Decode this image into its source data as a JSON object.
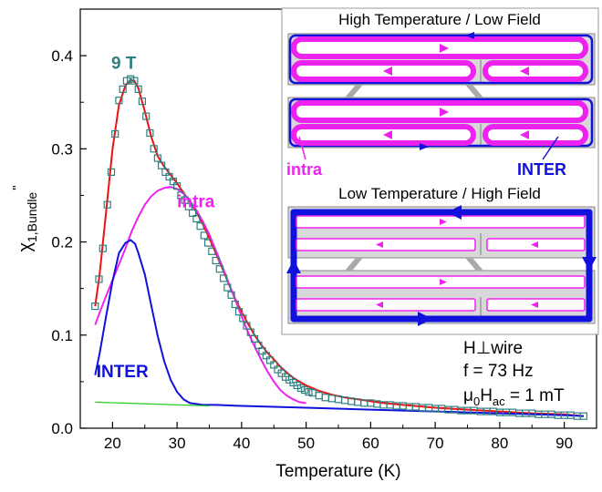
{
  "chart_data": {
    "type": "scatter",
    "xlabel": "Temperature (K)",
    "ylabel": {
      "base": "χ",
      "sub": "1,Bundle",
      "sup": "\""
    },
    "xlim": [
      15,
      95
    ],
    "ylim": [
      0,
      0.45
    ],
    "xticks": [
      20,
      30,
      40,
      50,
      60,
      70,
      80,
      90
    ],
    "yticks": [
      0.0,
      0.1,
      0.2,
      0.3,
      0.4
    ],
    "xtick_labels": [
      "20",
      "30",
      "40",
      "50",
      "60",
      "70",
      "80",
      "90"
    ],
    "ytick_labels": [
      "0.0",
      "0.1",
      "0.2",
      "0.3",
      "0.4"
    ],
    "grid": false,
    "colors": {
      "data": "#2f8080",
      "fit": "#ee1111",
      "intra": "#ee22ee",
      "inter": "#1111dd",
      "background": "#22cc22"
    },
    "series": [
      {
        "name": "9 T",
        "kind": "markers",
        "x": [
          17.3,
          17.9,
          18.5,
          19.2,
          19.8,
          20.4,
          21,
          21.6,
          22.2,
          22.8,
          23.4,
          24,
          24.6,
          25.2,
          25.8,
          26.4,
          27,
          27.6,
          28.2,
          28.8,
          29.4,
          30,
          30.6,
          31.2,
          31.8,
          32.4,
          33,
          33.6,
          34.2,
          34.8,
          35.4,
          36,
          36.6,
          37.2,
          37.8,
          38.4,
          39,
          39.6,
          40.2,
          40.8,
          41.4,
          42,
          42.6,
          43.2,
          43.8,
          44.4,
          45,
          45.6,
          46.2,
          46.8,
          47.4,
          48,
          48.6,
          49.2,
          49.8,
          50.4,
          51,
          52,
          53,
          54,
          55,
          56,
          57,
          58,
          59,
          60,
          61,
          62,
          63,
          64,
          65,
          66,
          67,
          68,
          69,
          70,
          71,
          72,
          73,
          74,
          75,
          76,
          77,
          78,
          79,
          80,
          81,
          82,
          83,
          84,
          85,
          86,
          87,
          88,
          89,
          90,
          91,
          92,
          93
        ],
        "y": [
          0.131,
          0.16,
          0.193,
          0.24,
          0.275,
          0.316,
          0.352,
          0.364,
          0.373,
          0.375,
          0.373,
          0.364,
          0.351,
          0.335,
          0.317,
          0.3,
          0.29,
          0.282,
          0.275,
          0.27,
          0.265,
          0.26,
          0.25,
          0.245,
          0.238,
          0.231,
          0.225,
          0.217,
          0.207,
          0.199,
          0.19,
          0.18,
          0.171,
          0.161,
          0.151,
          0.143,
          0.133,
          0.125,
          0.118,
          0.11,
          0.103,
          0.096,
          0.089,
          0.083,
          0.078,
          0.073,
          0.068,
          0.063,
          0.059,
          0.055,
          0.052,
          0.049,
          0.046,
          0.043,
          0.041,
          0.039,
          0.038,
          0.035,
          0.033,
          0.032,
          0.031,
          0.03,
          0.029,
          0.028,
          0.027,
          0.027,
          0.026,
          0.025,
          0.025,
          0.024,
          0.024,
          0.023,
          0.023,
          0.022,
          0.022,
          0.021,
          0.021,
          0.02,
          0.02,
          0.019,
          0.019,
          0.019,
          0.018,
          0.018,
          0.018,
          0.017,
          0.017,
          0.017,
          0.016,
          0.016,
          0.016,
          0.015,
          0.015,
          0.015,
          0.014,
          0.014,
          0.014,
          0.013,
          0.013
        ]
      },
      {
        "name": "",
        "kind": "line",
        "color_key": "fit",
        "x": [
          17.3,
          18,
          19,
          20,
          21,
          22,
          22.8,
          23.4,
          24,
          25,
          26,
          27,
          28,
          29,
          30,
          31,
          32,
          33,
          34,
          35,
          36,
          37,
          38,
          39,
          40,
          41,
          42,
          43,
          44,
          45,
          46,
          47,
          48,
          49,
          50,
          52,
          54,
          56,
          58,
          60,
          62,
          65,
          70,
          75,
          80,
          85,
          90,
          93
        ],
        "y": [
          0.131,
          0.165,
          0.232,
          0.3,
          0.347,
          0.368,
          0.374,
          0.373,
          0.365,
          0.34,
          0.313,
          0.292,
          0.281,
          0.272,
          0.263,
          0.253,
          0.243,
          0.232,
          0.219,
          0.204,
          0.188,
          0.172,
          0.155,
          0.139,
          0.125,
          0.112,
          0.1,
          0.09,
          0.081,
          0.074,
          0.066,
          0.06,
          0.054,
          0.05,
          0.046,
          0.04,
          0.036,
          0.033,
          0.031,
          0.029,
          0.027,
          0.025,
          0.022,
          0.02,
          0.018,
          0.016,
          0.015,
          0.013
        ]
      },
      {
        "name": "intra",
        "kind": "line",
        "color_key": "intra",
        "x": [
          17.3,
          18,
          19,
          20,
          21,
          22,
          23,
          24,
          25,
          26,
          27,
          28,
          29,
          30,
          31,
          32,
          33,
          34,
          35,
          36,
          37,
          38,
          39,
          40,
          41,
          42,
          43,
          44,
          45,
          46,
          47,
          48,
          49,
          50
        ],
        "y": [
          0.111,
          0.124,
          0.142,
          0.159,
          0.176,
          0.193,
          0.212,
          0.227,
          0.24,
          0.249,
          0.255,
          0.258,
          0.259,
          0.257,
          0.252,
          0.244,
          0.234,
          0.222,
          0.208,
          0.191,
          0.174,
          0.156,
          0.138,
          0.12,
          0.103,
          0.088,
          0.074,
          0.061,
          0.05,
          0.041,
          0.035,
          0.031,
          0.028,
          0.027
        ]
      },
      {
        "name": "INTER",
        "kind": "line",
        "color_key": "inter",
        "x": [
          17.3,
          18,
          19,
          20,
          21,
          22,
          22.8,
          23.5,
          24,
          25,
          26,
          27,
          28,
          29,
          30,
          31,
          32,
          33,
          34,
          36,
          40,
          50,
          60,
          70,
          80,
          90,
          93
        ],
        "y": [
          0.057,
          0.08,
          0.12,
          0.158,
          0.188,
          0.199,
          0.202,
          0.198,
          0.188,
          0.165,
          0.132,
          0.099,
          0.072,
          0.052,
          0.039,
          0.031,
          0.027,
          0.026,
          0.025,
          0.025,
          0.024,
          0.022,
          0.02,
          0.018,
          0.016,
          0.014,
          0.013
        ]
      },
      {
        "name": "",
        "kind": "line",
        "color_key": "background",
        "x": [
          17.3,
          35
        ],
        "y": [
          0.028,
          0.024
        ]
      }
    ],
    "annotations": [
      {
        "text": "9 T",
        "x": 19.8,
        "y": 0.386,
        "color_key": "data"
      },
      {
        "text": "intra",
        "x": 30.0,
        "y": 0.237,
        "color_key": "intra"
      },
      {
        "text": "INTER",
        "x": 17.5,
        "y": 0.055,
        "color_key": "inter"
      }
    ],
    "legend_text": [
      "H⊥wire",
      "f = 73 Hz",
      "μ0Hac = 1 mT"
    ]
  },
  "inset": {
    "title_top": "High Temperature / Low Field",
    "title_bottom": "Low Temperature / High Field",
    "label_intra": "intra",
    "label_inter": "INTER"
  },
  "legend": {
    "line1": "H⊥wire",
    "line2": "f = 73 Hz",
    "line3_mu": "μ",
    "line3_sub0": "0",
    "line3_H": "H",
    "line3_subac": "ac",
    "line3_rest": " = 1 mT"
  }
}
